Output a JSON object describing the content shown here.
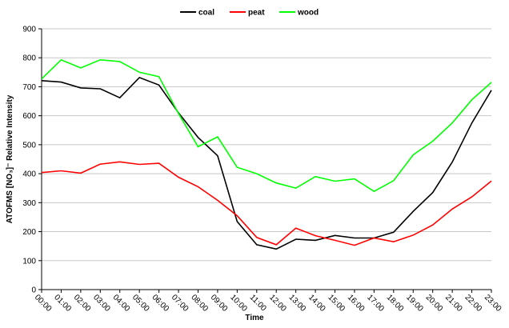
{
  "chart_data": {
    "type": "line",
    "x_label": "Time",
    "y_label": "ATOFMS [NO₃]⁻ Relative Intensity",
    "categories": [
      "00:00",
      "01:00",
      "02:00",
      "03:00",
      "04:00",
      "05:00",
      "06:00",
      "07:00",
      "08:00",
      "09:00",
      "10:00",
      "11:00",
      "12:00",
      "13:00",
      "14:00",
      "15:00",
      "16:00",
      "17:00",
      "18:00",
      "19:00",
      "20:00",
      "21:00",
      "22:00",
      "23:00"
    ],
    "series": [
      {
        "name": "coal",
        "color": "#000000",
        "values": [
          721,
          716,
          696,
          693,
          662,
          732,
          706,
          610,
          525,
          462,
          235,
          155,
          140,
          174,
          170,
          187,
          178,
          178,
          198,
          270,
          335,
          440,
          575,
          688
        ]
      },
      {
        "name": "peat",
        "color": "#ff0000",
        "values": [
          404,
          410,
          402,
          433,
          441,
          432,
          436,
          388,
          355,
          308,
          255,
          180,
          155,
          212,
          186,
          170,
          153,
          178,
          165,
          188,
          223,
          278,
          320,
          375
        ]
      },
      {
        "name": "wood",
        "color": "#00ff00",
        "values": [
          727,
          793,
          765,
          793,
          787,
          750,
          735,
          608,
          493,
          527,
          422,
          400,
          368,
          350,
          390,
          374,
          382,
          339,
          376,
          465,
          512,
          575,
          655,
          715
        ]
      }
    ],
    "ylim": [
      0,
      900
    ],
    "yticks": [
      0,
      100,
      200,
      300,
      400,
      500,
      600,
      700,
      800,
      900
    ],
    "grid": true,
    "legend": "top"
  }
}
